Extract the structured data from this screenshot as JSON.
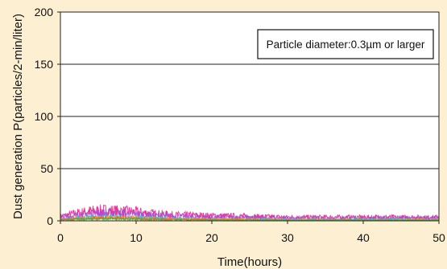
{
  "chart_data": {
    "type": "area",
    "xlabel": "Time(hours)",
    "ylabel": "Dust generation P(particles/2-min/liter)",
    "xlim": [
      0,
      50
    ],
    "ylim": [
      0,
      200
    ],
    "x_ticks": [
      "0",
      "10",
      "20",
      "30",
      "40",
      "50"
    ],
    "y_ticks": [
      "0",
      "50",
      "100",
      "150",
      "200"
    ],
    "grid": "horizontal",
    "annotation": "Particle diameter:0.3µm or larger",
    "series_colors": [
      "#e8208c",
      "#a94ad8",
      "#30b8e0",
      "#f0b020",
      "#f06020",
      "#40b040"
    ],
    "envelope": {
      "x": [
        0,
        2,
        4,
        6,
        8,
        10,
        12,
        15,
        20,
        25,
        30,
        35,
        40,
        45,
        50
      ],
      "y": [
        6,
        10,
        13,
        14,
        13,
        12,
        10,
        8,
        7,
        6,
        5,
        5,
        5,
        5,
        5
      ]
    }
  }
}
